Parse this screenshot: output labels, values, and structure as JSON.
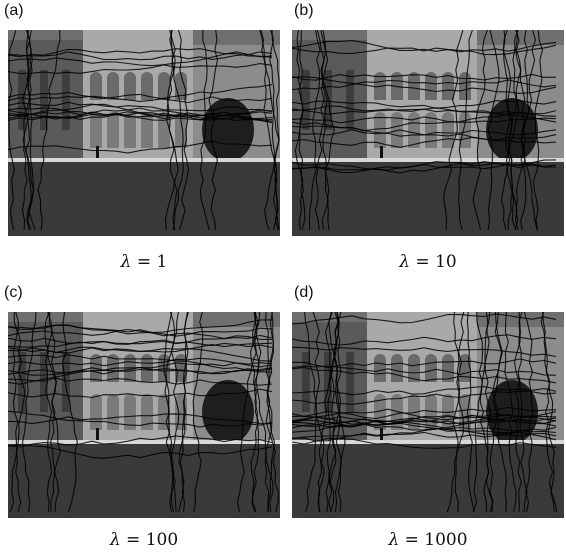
{
  "panels": [
    {
      "label": "(a)",
      "caption_symbol": "λ",
      "caption_eq": " = ",
      "caption_value": "1"
    },
    {
      "label": "(b)",
      "caption_symbol": "λ",
      "caption_eq": " = ",
      "caption_value": "10"
    },
    {
      "label": "(c)",
      "caption_symbol": "λ",
      "caption_eq": " = ",
      "caption_value": "100"
    },
    {
      "label": "(d)",
      "caption_symbol": "λ",
      "caption_eq": " = ",
      "caption_value": "1000"
    }
  ],
  "photo_description_icon": "cathedral-photo-with-seam-curves",
  "colors": {
    "sky": "#6f6f6f",
    "building": "#a9a9a9",
    "grass": "#3a3a3a",
    "seams": "#000000"
  }
}
